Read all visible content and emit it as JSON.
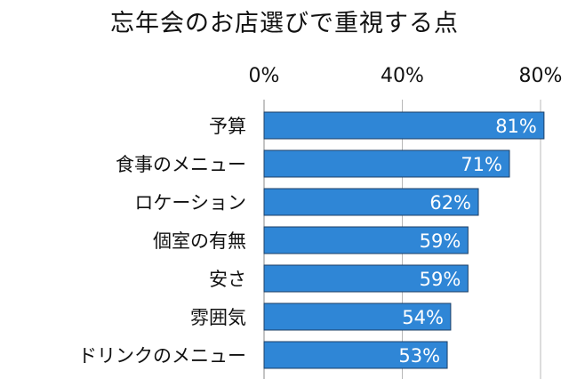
{
  "chart_data": {
    "type": "bar",
    "orientation": "horizontal",
    "title": "忘年会のお店選びで重視する点",
    "categories": [
      "予算",
      "食事のメニュー",
      "ロケーション",
      "個室の有無",
      "安さ",
      "雰囲気",
      "ドリンクのメニュー"
    ],
    "values": [
      81,
      71,
      62,
      59,
      59,
      54,
      53
    ],
    "value_labels": [
      "81%",
      "71%",
      "62%",
      "59%",
      "59%",
      "54%",
      "53%"
    ],
    "xlim": [
      0,
      80
    ],
    "xticks": [
      0,
      40,
      80
    ],
    "xtick_labels": [
      "0%",
      "40%",
      "80%"
    ],
    "grid": true,
    "xlabel": "",
    "ylabel": "",
    "bar_color": "#2f86d6"
  }
}
